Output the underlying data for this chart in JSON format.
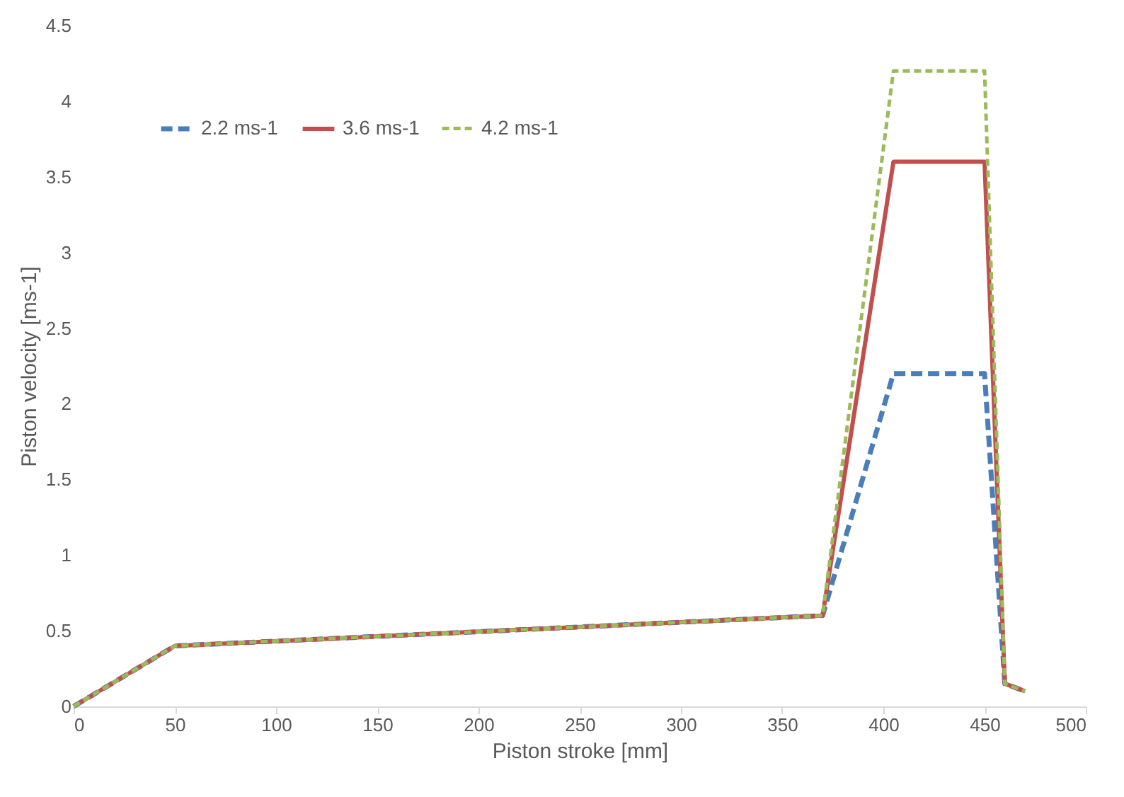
{
  "chart_data": {
    "type": "line",
    "xlabel": "Piston stroke [mm]",
    "ylabel": "Piston velocity [ms-1]",
    "x": [
      0,
      50,
      370,
      405,
      450,
      460,
      470
    ],
    "series": [
      {
        "name": "2.2 ms-1",
        "color": "#4a7ebb",
        "line_style": "dashed",
        "values": [
          0,
          0.4,
          0.6,
          2.2,
          2.2,
          0.15,
          0.1
        ]
      },
      {
        "name": "3.6 ms-1",
        "color": "#c0504d",
        "line_style": "solid",
        "values": [
          0,
          0.4,
          0.6,
          3.6,
          3.6,
          0.15,
          0.1
        ]
      },
      {
        "name": "4.2 ms-1",
        "color": "#9bbb59",
        "line_style": "dotted",
        "values": [
          0,
          0.4,
          0.6,
          4.2,
          4.2,
          0.15,
          0.1
        ]
      }
    ],
    "xlim": [
      0,
      500
    ],
    "xticks": [
      0,
      50,
      100,
      150,
      200,
      250,
      300,
      350,
      400,
      450,
      500
    ],
    "ylim": [
      0,
      4.5
    ],
    "yticks": [
      0,
      0.5,
      1,
      1.5,
      2,
      2.5,
      3,
      3.5,
      4,
      4.5
    ],
    "grid": false,
    "legend": "top left"
  }
}
